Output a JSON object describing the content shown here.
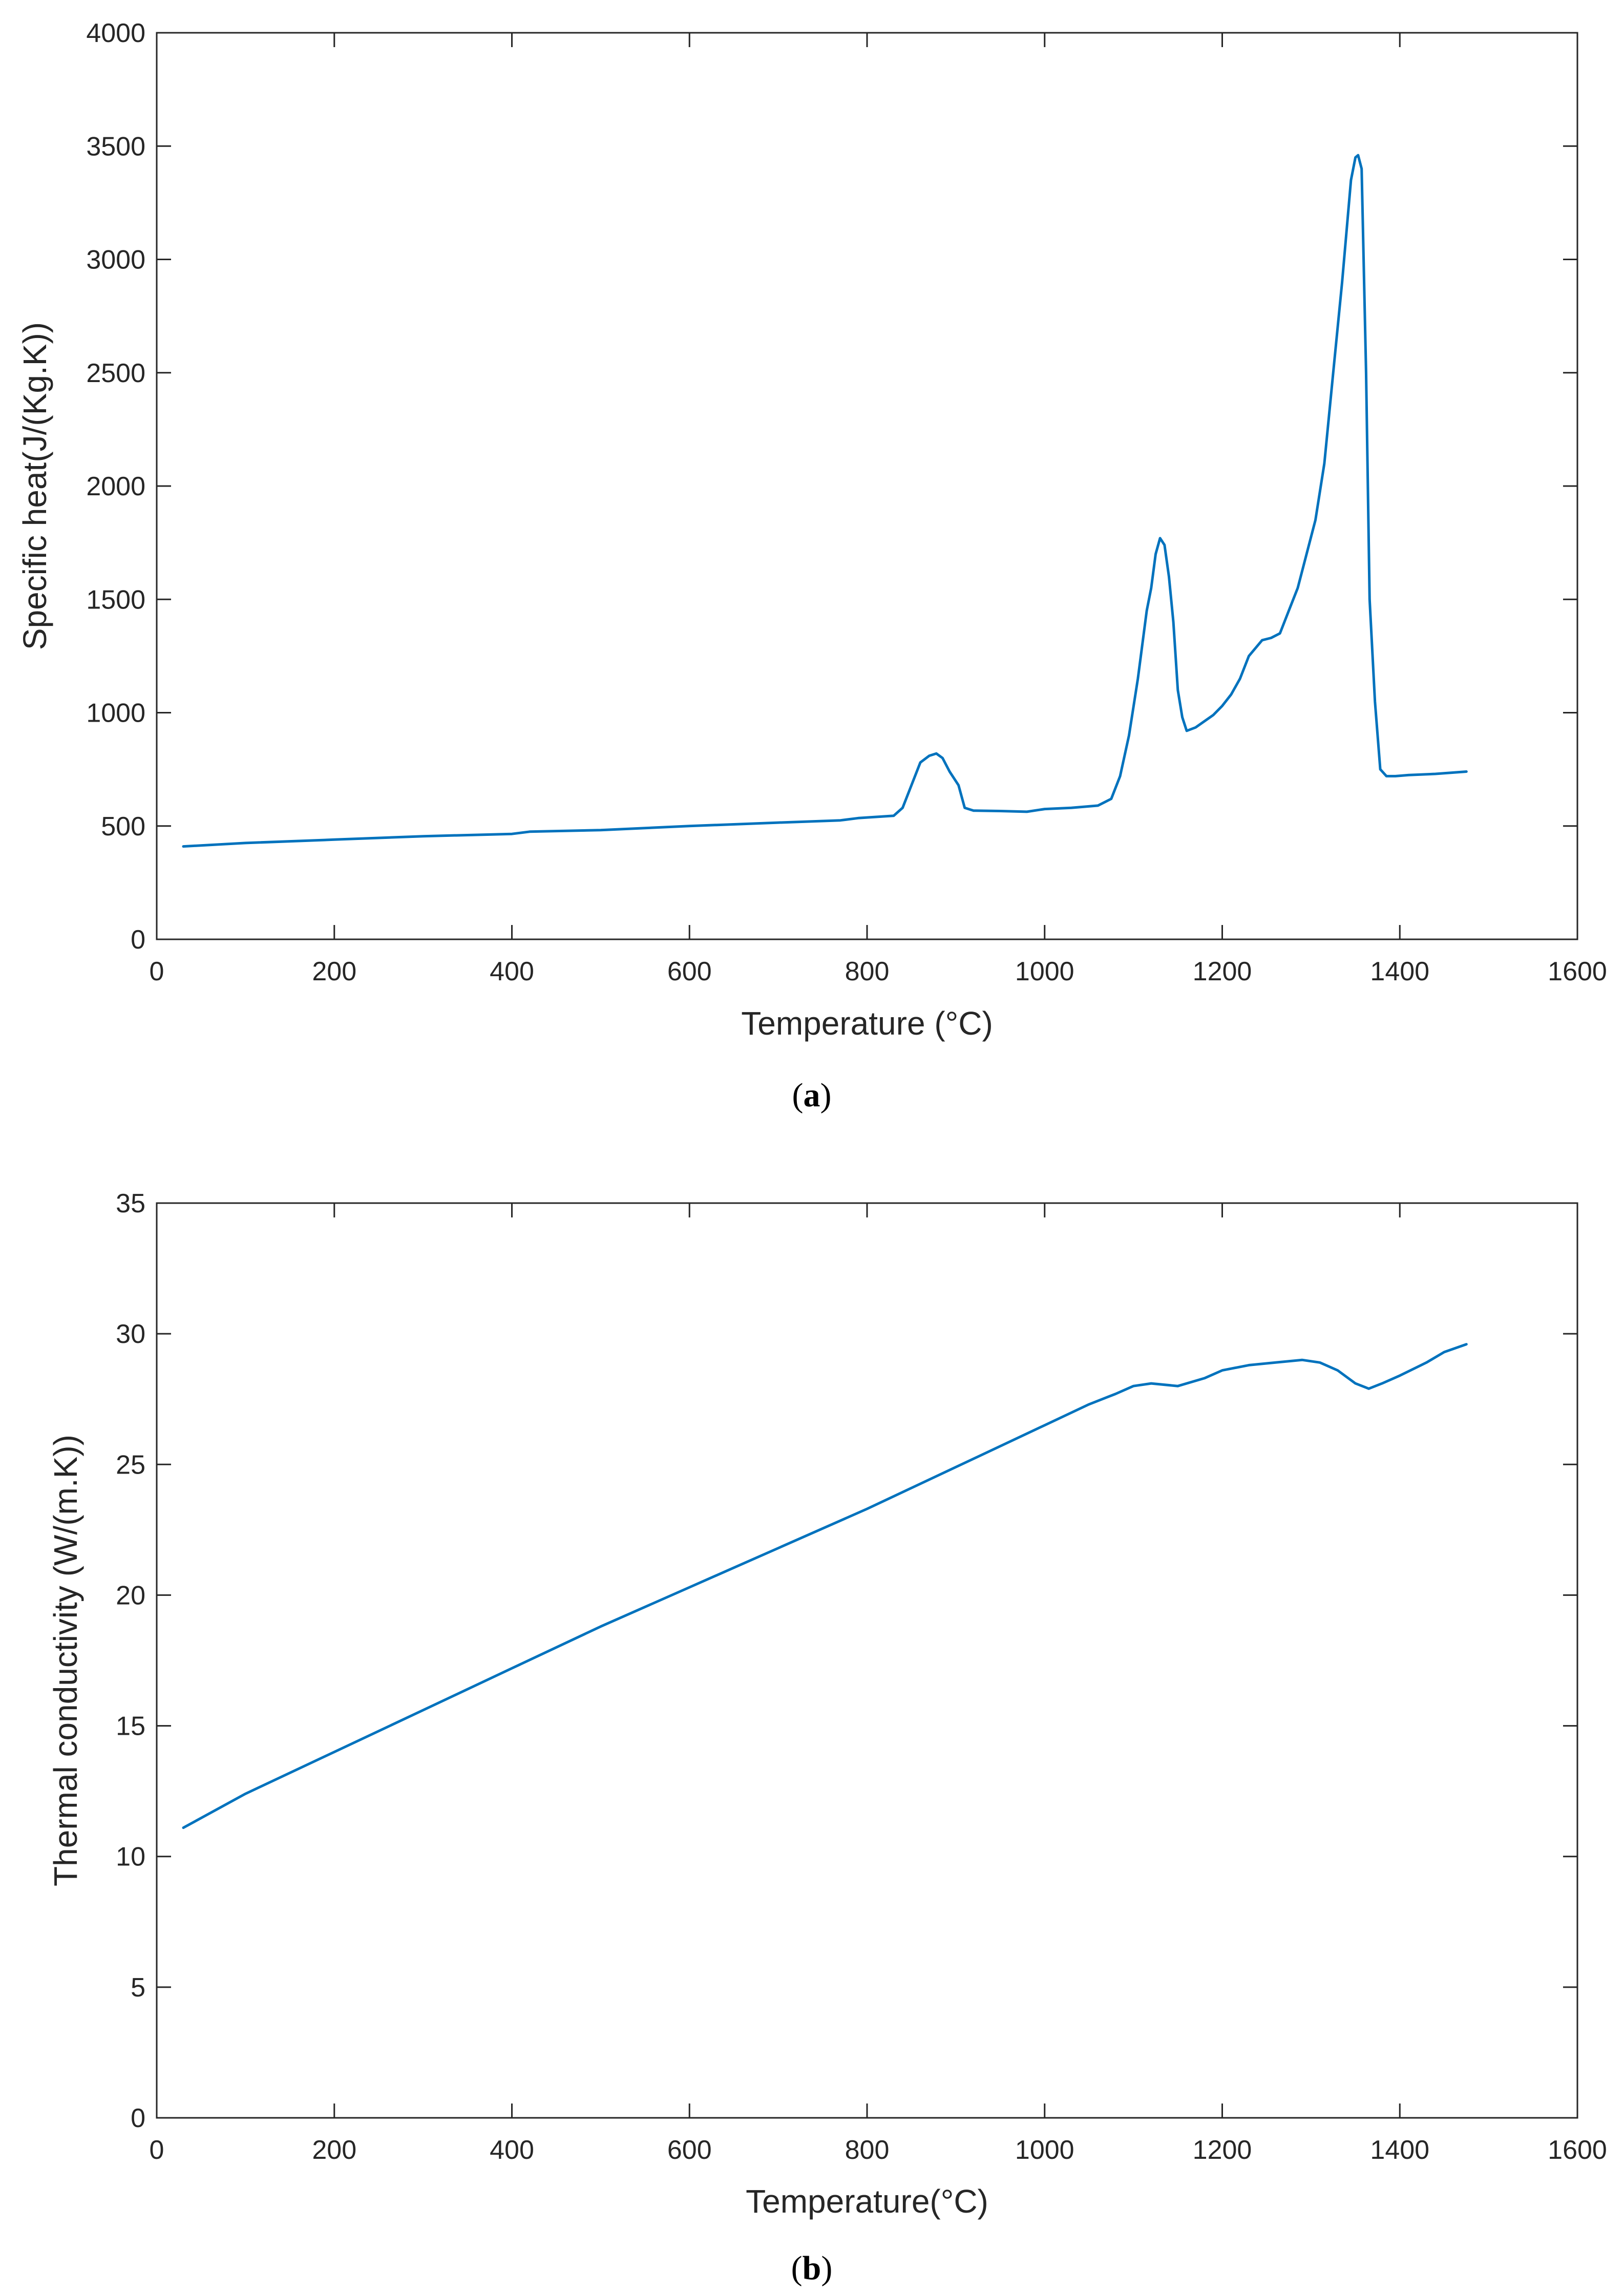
{
  "figure": {
    "panels": [
      "a",
      "b"
    ],
    "line_color": "#0072BD",
    "axis_color": "#262626"
  },
  "chart_data": [
    {
      "id": "a",
      "type": "line",
      "panel_label": "a",
      "title": "",
      "xlabel": "Temperature (°C)",
      "ylabel": "Specific heat(J/(Kg.K))",
      "xlim": [
        0,
        1600
      ],
      "ylim": [
        0,
        4000
      ],
      "xticks": [
        0,
        200,
        400,
        600,
        800,
        1000,
        1200,
        1400,
        1600
      ],
      "yticks": [
        0,
        500,
        1000,
        1500,
        2000,
        2500,
        3000,
        3500,
        4000
      ],
      "grid": false,
      "series": [
        {
          "name": "Specific heat",
          "color": "#0072BD",
          "x": [
            30,
            100,
            200,
            300,
            400,
            420,
            500,
            600,
            700,
            770,
            790,
            830,
            840,
            850,
            860,
            870,
            878,
            885,
            893,
            903,
            910,
            920,
            950,
            980,
            1000,
            1030,
            1060,
            1075,
            1085,
            1095,
            1105,
            1115,
            1120,
            1125,
            1130,
            1135,
            1140,
            1145,
            1150,
            1155,
            1160,
            1170,
            1190,
            1200,
            1210,
            1220,
            1230,
            1245,
            1255,
            1265,
            1275,
            1285,
            1295,
            1305,
            1315,
            1325,
            1335,
            1345,
            1350,
            1353,
            1357,
            1362,
            1366,
            1372,
            1378,
            1385,
            1395,
            1410,
            1440,
            1475
          ],
          "y": [
            410,
            425,
            440,
            455,
            465,
            475,
            482,
            500,
            515,
            525,
            535,
            545,
            580,
            680,
            780,
            810,
            820,
            800,
            740,
            680,
            580,
            568,
            566,
            563,
            575,
            580,
            590,
            620,
            720,
            900,
            1150,
            1450,
            1550,
            1700,
            1770,
            1740,
            1600,
            1400,
            1100,
            980,
            920,
            935,
            990,
            1030,
            1080,
            1150,
            1250,
            1320,
            1330,
            1350,
            1450,
            1550,
            1700,
            1850,
            2100,
            2500,
            2900,
            3350,
            3450,
            3460,
            3400,
            2500,
            1500,
            1050,
            750,
            720,
            720,
            725,
            730,
            740
          ]
        }
      ]
    },
    {
      "id": "b",
      "type": "line",
      "panel_label": "b",
      "title": "",
      "xlabel": "Temperature(°C)",
      "ylabel": "Thermal conductivity (W/(m.K))",
      "xlim": [
        0,
        1600
      ],
      "ylim": [
        0,
        35
      ],
      "xticks": [
        0,
        200,
        400,
        600,
        800,
        1000,
        1200,
        1400,
        1600
      ],
      "yticks": [
        0,
        5,
        10,
        15,
        20,
        25,
        30,
        35
      ],
      "grid": false,
      "series": [
        {
          "name": "Thermal conductivity",
          "color": "#0072BD",
          "x": [
            30,
            100,
            200,
            300,
            400,
            500,
            600,
            700,
            800,
            900,
            1000,
            1050,
            1080,
            1100,
            1120,
            1150,
            1180,
            1200,
            1230,
            1260,
            1290,
            1310,
            1330,
            1350,
            1365,
            1380,
            1400,
            1430,
            1450,
            1475
          ],
          "y": [
            11.1,
            12.4,
            14.0,
            15.6,
            17.2,
            18.8,
            20.3,
            21.8,
            23.3,
            24.9,
            26.5,
            27.3,
            27.7,
            28.0,
            28.1,
            28.0,
            28.3,
            28.6,
            28.8,
            28.9,
            29.0,
            28.9,
            28.6,
            28.1,
            27.9,
            28.1,
            28.4,
            28.9,
            29.3,
            29.6
          ]
        }
      ]
    }
  ]
}
